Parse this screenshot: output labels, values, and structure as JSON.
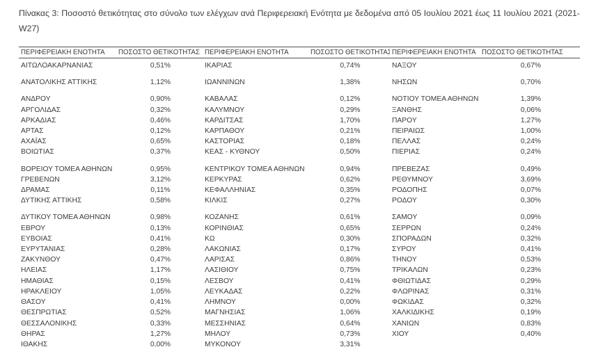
{
  "title": "Πίνακας 3: Ποσοστό θετικότητας στο σύνολο των ελέγχων ανά Περιφερειακή Ενότητα με δεδομένα από 05 Ιουλίου 2021 έως 11 Ιουλίου 2021 (2021-W27)",
  "table": {
    "headers": [
      "ΠΕΡΙΦΕΡΕΙΑΚΗ ΕΝΟΤΗΤΑ",
      "ΠΟΣΟΣΤΟ ΘΕΤΙΚΟΤΗΤΑΣ",
      "ΠΕΡΙΦΕΡΕΙΑΚΗ ΕΝΟΤΗΤΑ",
      "ΠΟΣΟΣΤΟ ΘΕΤΙΚΟΤΗΤΑΣ",
      "ΠΕΡΙΦΕΡΕΙΑΚΗ ΕΝΟΤΗΤΑ",
      "ΠΟΣΟΣΤΟ ΘΕΤΙΚΟΤΗΤΑΣ"
    ],
    "groups": [
      {
        "rows": [
          [
            "ΑΙΤΩΛΟΑΚΑΡΝΑΝΙΑΣ",
            "0,51%",
            "ΙΚΑΡΙΑΣ",
            "0,74%",
            "ΝΑΞΟΥ",
            "0,67%"
          ]
        ]
      },
      {
        "rows": [
          [
            "ΑΝΑΤΟΛΙΚΗΣ ΑΤΤΙΚΗΣ",
            "1,12%",
            "ΙΩΑΝΝΙΝΩΝ",
            "1,38%",
            "ΝΗΣΩΝ",
            "0,70%"
          ]
        ]
      },
      {
        "rows": [
          [
            "ΑΝΔΡΟΥ",
            "0,90%",
            "ΚΑΒΑΛΑΣ",
            "0,12%",
            "ΝΟΤΙΟΥ ΤΟΜΕΑ ΑΘΗΝΩΝ",
            "1,39%"
          ],
          [
            "ΑΡΓΟΛΙΔΑΣ",
            "0,32%",
            "ΚΑΛΥΜΝΟΥ",
            "0,29%",
            "ΞΑΝΘΗΣ",
            "0,06%"
          ],
          [
            "ΑΡΚΑΔΙΑΣ",
            "0,46%",
            "ΚΑΡΔΙΤΣΑΣ",
            "1,70%",
            "ΠΑΡΟΥ",
            "1,27%"
          ],
          [
            "ΑΡΤΑΣ",
            "0,12%",
            "ΚΑΡΠΑΘΟΥ",
            "0,21%",
            "ΠΕΙΡΑΙΩΣ",
            "1,00%"
          ],
          [
            "ΑΧΑΪΑΣ",
            "0,65%",
            "ΚΑΣΤΟΡΙΑΣ",
            "0,18%",
            "ΠΕΛΛΑΣ",
            "0,24%"
          ],
          [
            "ΒΟΙΩΤΙΑΣ",
            "0,37%",
            "ΚΕΑΣ - ΚΥΘΝΟΥ",
            "0,50%",
            "ΠΙΕΡΙΑΣ",
            "0,24%"
          ]
        ]
      },
      {
        "rows": [
          [
            "ΒΟΡΕΙΟΥ ΤΟΜΕΑ ΑΘΗΝΩΝ",
            "0,95%",
            "ΚΕΝΤΡΙΚΟΥ ΤΟΜΕΑ ΑΘΗΝΩΝ",
            "0,94%",
            "ΠΡΕΒΕΖΑΣ",
            "0,49%"
          ],
          [
            "ΓΡΕΒΕΝΩΝ",
            "3,12%",
            "ΚΕΡΚΥΡΑΣ",
            "0,62%",
            "ΡΕΘΥΜΝΟΥ",
            "3,69%"
          ],
          [
            "ΔΡΑΜΑΣ",
            "0,11%",
            "ΚΕΦΑΛΛΗΝΙΑΣ",
            "0,35%",
            "ΡΟΔΟΠΗΣ",
            "0,07%"
          ],
          [
            "ΔΥΤΙΚΗΣ ΑΤΤΙΚΗΣ",
            "0,58%",
            "ΚΙΛΚΙΣ",
            "0,27%",
            "ΡΟΔΟΥ",
            "0,30%"
          ]
        ]
      },
      {
        "rows": [
          [
            "ΔΥΤΙΚΟΥ ΤΟΜΕΑ ΑΘΗΝΩΝ",
            "0,98%",
            "ΚΟΖΑΝΗΣ",
            "0,61%",
            "ΣΑΜΟΥ",
            "0,09%"
          ],
          [
            "ΕΒΡΟΥ",
            "0,13%",
            "ΚΟΡΙΝΘΙΑΣ",
            "0,65%",
            "ΣΕΡΡΩΝ",
            "0,24%"
          ],
          [
            "ΕΥΒΟΙΑΣ",
            "0,41%",
            "ΚΩ",
            "0,30%",
            "ΣΠΟΡΑΔΩΝ",
            "0,32%"
          ],
          [
            "ΕΥΡΥΤΑΝΙΑΣ",
            "0,28%",
            "ΛΑΚΩΝΙΑΣ",
            "0,17%",
            "ΣΥΡΟΥ",
            "0,41%"
          ],
          [
            "ΖΑΚΥΝΘΟΥ",
            "0,47%",
            "ΛΑΡΙΣΑΣ",
            "0,86%",
            "ΤΗΝΟΥ",
            "0,53%"
          ],
          [
            "ΗΛΕΙΑΣ",
            "1,17%",
            "ΛΑΣΙΘΙΟΥ",
            "0,75%",
            "ΤΡΙΚΑΛΩΝ",
            "0,23%"
          ],
          [
            "ΗΜΑΘΙΑΣ",
            "0,15%",
            "ΛΕΣΒΟΥ",
            "0,41%",
            "ΦΘΙΩΤΙΔΑΣ",
            "0,29%"
          ],
          [
            "ΗΡΑΚΛΕΙΟΥ",
            "1,05%",
            "ΛΕΥΚΑΔΑΣ",
            "0,22%",
            "ΦΛΩΡΙΝΑΣ",
            "0,31%"
          ],
          [
            "ΘΑΣΟΥ",
            "0,41%",
            "ΛΗΜΝΟΥ",
            "0,00%",
            "ΦΩΚΙΔΑΣ",
            "0,32%"
          ],
          [
            "ΘΕΣΠΡΩΤΙΑΣ",
            "0,52%",
            "ΜΑΓΝΗΣΙΑΣ",
            "1,06%",
            "ΧΑΛΚΙΔΙΚΗΣ",
            "0,19%"
          ],
          [
            "ΘΕΣΣΑΛΟΝΙΚΗΣ",
            "0,33%",
            "ΜΕΣΣΗΝΙΑΣ",
            "0,64%",
            "ΧΑΝΙΩΝ",
            "0,83%"
          ],
          [
            "ΘΗΡΑΣ",
            "1,27%",
            "ΜΗΛΟΥ",
            "0,73%",
            "ΧΙΟΥ",
            "0,40%"
          ],
          [
            "ΙΘΑΚΗΣ",
            "0,00%",
            "ΜΥΚΟΝΟΥ",
            "3,31%",
            "",
            ""
          ]
        ]
      }
    ]
  }
}
